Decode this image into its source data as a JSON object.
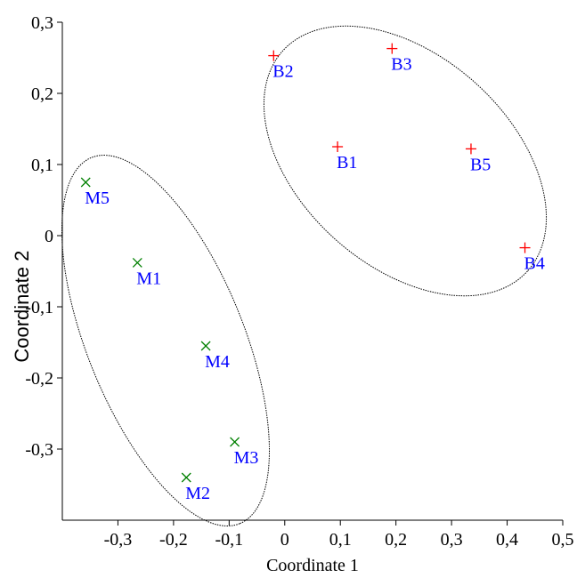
{
  "chart_data": {
    "type": "scatter",
    "xlabel": "Coordinate 1",
    "ylabel": "Coordinate 2",
    "xlim": [
      -0.4,
      0.5
    ],
    "ylim": [
      -0.4,
      0.3
    ],
    "x_ticks": [
      {
        "value": -0.3,
        "label": "-0,3"
      },
      {
        "value": -0.2,
        "label": "-0,2"
      },
      {
        "value": -0.1,
        "label": "-0,1"
      },
      {
        "value": 0.0,
        "label": "0"
      },
      {
        "value": 0.1,
        "label": "0,1"
      },
      {
        "value": 0.2,
        "label": "0,2"
      },
      {
        "value": 0.3,
        "label": "0,3"
      },
      {
        "value": 0.4,
        "label": "0,4"
      },
      {
        "value": 0.5,
        "label": "0,5"
      }
    ],
    "y_ticks": [
      {
        "value": 0.3,
        "label": "0,3"
      },
      {
        "value": 0.2,
        "label": "0,2"
      },
      {
        "value": 0.1,
        "label": "0,1"
      },
      {
        "value": 0.0,
        "label": "0"
      },
      {
        "value": -0.1,
        "label": "-0,1"
      },
      {
        "value": -0.2,
        "label": "-0,2"
      },
      {
        "value": -0.3,
        "label": "-0,3"
      }
    ],
    "grid": false,
    "series": [
      {
        "marker": "plus",
        "color": "#ff0000",
        "points": [
          {
            "label": "B1",
            "x": 0.095,
            "y": 0.125
          },
          {
            "label": "B2",
            "x": -0.02,
            "y": 0.253
          },
          {
            "label": "B3",
            "x": 0.193,
            "y": 0.263
          },
          {
            "label": "B4",
            "x": 0.432,
            "y": -0.017
          },
          {
            "label": "B5",
            "x": 0.335,
            "y": 0.122
          }
        ]
      },
      {
        "marker": "cross",
        "color": "#008000",
        "points": [
          {
            "label": "M1",
            "x": -0.265,
            "y": -0.038
          },
          {
            "label": "M2",
            "x": -0.177,
            "y": -0.34
          },
          {
            "label": "M3",
            "x": -0.09,
            "y": -0.29
          },
          {
            "label": "M4",
            "x": -0.142,
            "y": -0.155
          },
          {
            "label": "M5",
            "x": -0.358,
            "y": 0.075
          }
        ]
      }
    ],
    "label_color": "#0000ff",
    "ellipse_color": "#000000"
  }
}
